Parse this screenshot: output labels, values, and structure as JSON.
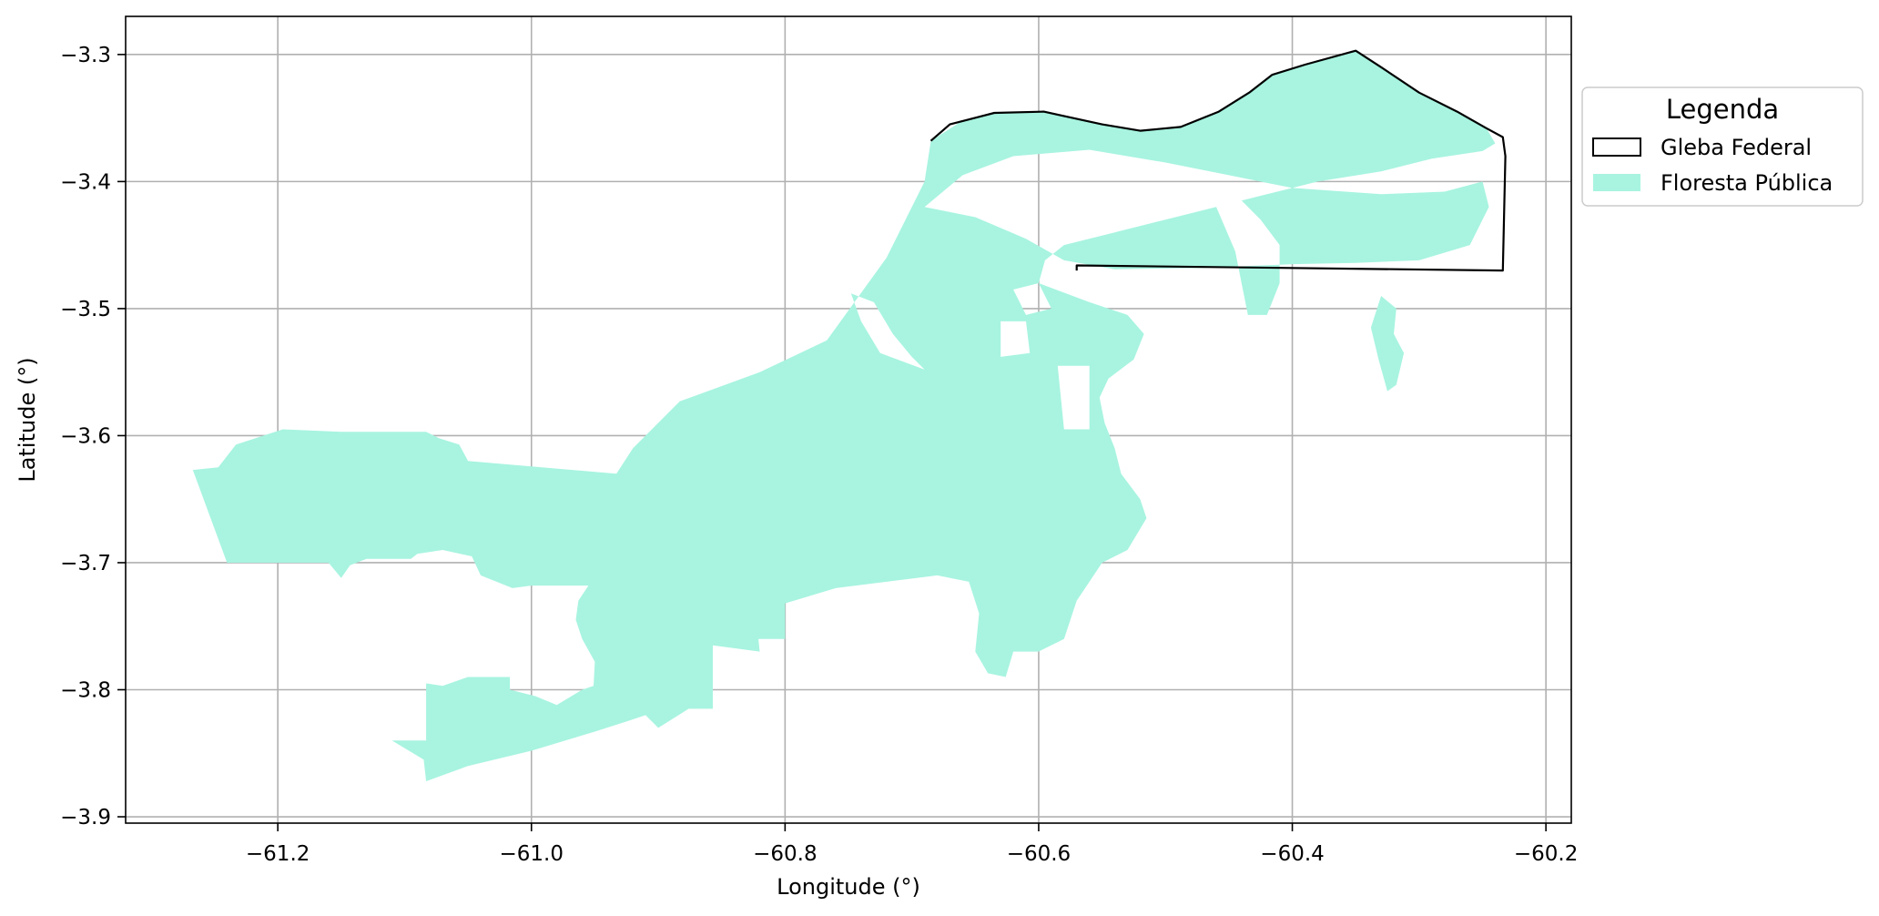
{
  "chart_data": {
    "type": "map",
    "xlabel": "Longitude (°)",
    "ylabel": "Latitude (°)",
    "xlim": [
      -61.32,
      -60.18
    ],
    "ylim": [
      -3.905,
      -3.27
    ],
    "xticks": [
      -61.2,
      -61.0,
      -60.8,
      -60.6,
      -60.4,
      -60.2
    ],
    "yticks": [
      -3.3,
      -3.4,
      -3.5,
      -3.6,
      -3.7,
      -3.8,
      -3.9
    ],
    "xtick_labels": [
      "−61.2",
      "−61.0",
      "−60.8",
      "−60.6",
      "−60.4",
      "−60.2"
    ],
    "ytick_labels": [
      "−3.3",
      "−3.4",
      "−3.5",
      "−3.6",
      "−3.7",
      "−3.8",
      "−3.9"
    ],
    "grid": true,
    "legend": {
      "title": "Legenda",
      "placement": "outside-right-top",
      "entries": [
        {
          "label": "Gleba Federal",
          "style": "outline",
          "color": "#000000"
        },
        {
          "label": "Floresta Pública",
          "style": "fill",
          "color": "#a8f4e0"
        }
      ]
    },
    "layers": [
      {
        "name": "Floresta Pública",
        "color": "#a8f4e0",
        "polygons": [
          [
            [
              -61.267,
              -3.627
            ],
            [
              -61.247,
              -3.625
            ],
            [
              -61.233,
              -3.607
            ],
            [
              -61.196,
              -3.595
            ],
            [
              -61.15,
              -3.597
            ],
            [
              -61.083,
              -3.597
            ],
            [
              -61.073,
              -3.602
            ],
            [
              -61.057,
              -3.607
            ],
            [
              -61.05,
              -3.62
            ],
            [
              -60.933,
              -3.63
            ],
            [
              -60.92,
              -3.61
            ],
            [
              -60.883,
              -3.573
            ],
            [
              -60.82,
              -3.55
            ],
            [
              -60.767,
              -3.525
            ],
            [
              -60.72,
              -3.46
            ],
            [
              -60.69,
              -3.4
            ],
            [
              -60.685,
              -3.368
            ],
            [
              -60.66,
              -3.352
            ],
            [
              -60.635,
              -3.346
            ],
            [
              -60.596,
              -3.345
            ],
            [
              -60.55,
              -3.355
            ],
            [
              -60.52,
              -3.36
            ],
            [
              -60.488,
              -3.357
            ],
            [
              -60.458,
              -3.345
            ],
            [
              -60.434,
              -3.33
            ],
            [
              -60.416,
              -3.316
            ],
            [
              -60.39,
              -3.308
            ],
            [
              -60.35,
              -3.297
            ],
            [
              -60.33,
              -3.31
            ],
            [
              -60.3,
              -3.33
            ],
            [
              -60.27,
              -3.345
            ],
            [
              -60.247,
              -3.358
            ],
            [
              -60.24,
              -3.37
            ],
            [
              -60.25,
              -3.376
            ],
            [
              -60.29,
              -3.382
            ],
            [
              -60.33,
              -3.392
            ],
            [
              -60.38,
              -3.4
            ],
            [
              -60.42,
              -3.41
            ],
            [
              -60.46,
              -3.42
            ],
            [
              -60.5,
              -3.43
            ],
            [
              -60.54,
              -3.44
            ],
            [
              -60.58,
              -3.45
            ],
            [
              -60.595,
              -3.462
            ],
            [
              -60.6,
              -3.48
            ],
            [
              -60.56,
              -3.495
            ],
            [
              -60.53,
              -3.505
            ],
            [
              -60.517,
              -3.52
            ],
            [
              -60.525,
              -3.54
            ],
            [
              -60.545,
              -3.555
            ],
            [
              -60.552,
              -3.57
            ],
            [
              -60.548,
              -3.59
            ],
            [
              -60.54,
              -3.61
            ],
            [
              -60.535,
              -3.63
            ],
            [
              -60.52,
              -3.65
            ],
            [
              -60.515,
              -3.665
            ],
            [
              -60.53,
              -3.69
            ],
            [
              -60.55,
              -3.7
            ],
            [
              -60.57,
              -3.73
            ],
            [
              -60.58,
              -3.76
            ],
            [
              -60.6,
              -3.77
            ],
            [
              -60.62,
              -3.77
            ],
            [
              -60.626,
              -3.79
            ],
            [
              -60.64,
              -3.787
            ],
            [
              -60.65,
              -3.77
            ],
            [
              -60.647,
              -3.74
            ],
            [
              -60.655,
              -3.715
            ],
            [
              -60.68,
              -3.71
            ],
            [
              -60.76,
              -3.72
            ],
            [
              -60.8,
              -3.732
            ],
            [
              -60.8,
              -3.76
            ],
            [
              -60.821,
              -3.76
            ],
            [
              -60.82,
              -3.77
            ],
            [
              -60.857,
              -3.765
            ],
            [
              -60.857,
              -3.815
            ],
            [
              -60.876,
              -3.815
            ],
            [
              -60.9,
              -3.83
            ],
            [
              -60.91,
              -3.82
            ],
            [
              -60.925,
              -3.825
            ],
            [
              -60.95,
              -3.833
            ],
            [
              -61.0,
              -3.848
            ],
            [
              -61.05,
              -3.86
            ],
            [
              -61.083,
              -3.872
            ],
            [
              -61.085,
              -3.855
            ],
            [
              -61.11,
              -3.84
            ],
            [
              -61.12,
              -3.84
            ],
            [
              -61.083,
              -3.84
            ],
            [
              -61.083,
              -3.795
            ],
            [
              -61.07,
              -3.797
            ],
            [
              -61.05,
              -3.79
            ],
            [
              -61.017,
              -3.79
            ],
            [
              -61.017,
              -3.8
            ],
            [
              -60.997,
              -3.805
            ],
            [
              -60.98,
              -3.812
            ],
            [
              -60.96,
              -3.8
            ],
            [
              -60.951,
              -3.797
            ],
            [
              -60.95,
              -3.778
            ],
            [
              -60.96,
              -3.76
            ],
            [
              -60.965,
              -3.745
            ],
            [
              -60.963,
              -3.73
            ],
            [
              -60.955,
              -3.718
            ],
            [
              -60.99,
              -3.718
            ],
            [
              -61.0,
              -3.718
            ],
            [
              -61.015,
              -3.72
            ],
            [
              -61.04,
              -3.71
            ],
            [
              -61.047,
              -3.695
            ],
            [
              -61.07,
              -3.69
            ],
            [
              -61.09,
              -3.693
            ],
            [
              -61.095,
              -3.697
            ],
            [
              -61.13,
              -3.697
            ],
            [
              -61.143,
              -3.702
            ],
            [
              -61.15,
              -3.712
            ],
            [
              -61.16,
              -3.7
            ],
            [
              -61.24,
              -3.7
            ],
            [
              -61.267,
              -3.627
            ]
          ],
          [
            [
              -60.46,
              -3.42
            ],
            [
              -60.44,
              -3.415
            ],
            [
              -60.425,
              -3.43
            ],
            [
              -60.41,
              -3.45
            ],
            [
              -60.41,
              -3.48
            ],
            [
              -60.42,
              -3.505
            ],
            [
              -60.435,
              -3.505
            ],
            [
              -60.44,
              -3.48
            ],
            [
              -60.445,
              -3.455
            ],
            [
              -60.46,
              -3.42
            ]
          ],
          [
            [
              -60.33,
              -3.49
            ],
            [
              -60.318,
              -3.5
            ],
            [
              -60.32,
              -3.52
            ],
            [
              -60.312,
              -3.535
            ],
            [
              -60.318,
              -3.56
            ],
            [
              -60.325,
              -3.565
            ],
            [
              -60.332,
              -3.54
            ],
            [
              -60.338,
              -3.515
            ],
            [
              -60.33,
              -3.49
            ]
          ]
        ]
      }
    ],
    "holes": [
      [
        [
          -60.69,
          -3.42
        ],
        [
          -60.66,
          -3.395
        ],
        [
          -60.62,
          -3.38
        ],
        [
          -60.56,
          -3.375
        ],
        [
          -60.5,
          -3.385
        ],
        [
          -60.45,
          -3.395
        ],
        [
          -60.4,
          -3.405
        ],
        [
          -60.33,
          -3.41
        ],
        [
          -60.28,
          -3.408
        ],
        [
          -60.25,
          -3.4
        ],
        [
          -60.245,
          -3.42
        ],
        [
          -60.26,
          -3.45
        ],
        [
          -60.3,
          -3.462
        ],
        [
          -60.35,
          -3.464
        ],
        [
          -60.4,
          -3.465
        ],
        [
          -60.47,
          -3.468
        ],
        [
          -60.54,
          -3.469
        ],
        [
          -60.58,
          -3.462
        ],
        [
          -60.61,
          -3.445
        ],
        [
          -60.65,
          -3.428
        ],
        [
          -60.69,
          -3.42
        ]
      ],
      [
        [
          -60.748,
          -3.488
        ],
        [
          -60.73,
          -3.495
        ],
        [
          -60.715,
          -3.52
        ],
        [
          -60.7,
          -3.538
        ],
        [
          -60.69,
          -3.548
        ],
        [
          -60.725,
          -3.535
        ],
        [
          -60.74,
          -3.51
        ],
        [
          -60.748,
          -3.488
        ]
      ],
      [
        [
          -60.63,
          -3.51
        ],
        [
          -60.61,
          -3.51
        ],
        [
          -60.607,
          -3.535
        ],
        [
          -60.63,
          -3.538
        ],
        [
          -60.63,
          -3.51
        ]
      ],
      [
        [
          -60.585,
          -3.545
        ],
        [
          -60.56,
          -3.545
        ],
        [
          -60.56,
          -3.595
        ],
        [
          -60.58,
          -3.595
        ],
        [
          -60.585,
          -3.545
        ]
      ],
      [
        [
          -60.62,
          -3.485
        ],
        [
          -60.6,
          -3.48
        ],
        [
          -60.59,
          -3.5
        ],
        [
          -60.61,
          -3.505
        ],
        [
          -60.62,
          -3.485
        ]
      ]
    ],
    "outline": {
      "name": "Gleba Federal",
      "color": "#000000",
      "points": [
        [
          -60.685,
          -3.368
        ],
        [
          -60.67,
          -3.355
        ],
        [
          -60.635,
          -3.346
        ],
        [
          -60.596,
          -3.345
        ],
        [
          -60.55,
          -3.355
        ],
        [
          -60.52,
          -3.36
        ],
        [
          -60.488,
          -3.357
        ],
        [
          -60.458,
          -3.345
        ],
        [
          -60.434,
          -3.33
        ],
        [
          -60.416,
          -3.316
        ],
        [
          -60.39,
          -3.308
        ],
        [
          -60.35,
          -3.297
        ],
        [
          -60.33,
          -3.31
        ],
        [
          -60.3,
          -3.33
        ],
        [
          -60.27,
          -3.345
        ],
        [
          -60.247,
          -3.358
        ],
        [
          -60.234,
          -3.365
        ],
        [
          -60.232,
          -3.38
        ],
        [
          -60.234,
          -3.47
        ],
        [
          -60.57,
          -3.466
        ],
        [
          -60.57,
          -3.47
        ]
      ]
    }
  }
}
